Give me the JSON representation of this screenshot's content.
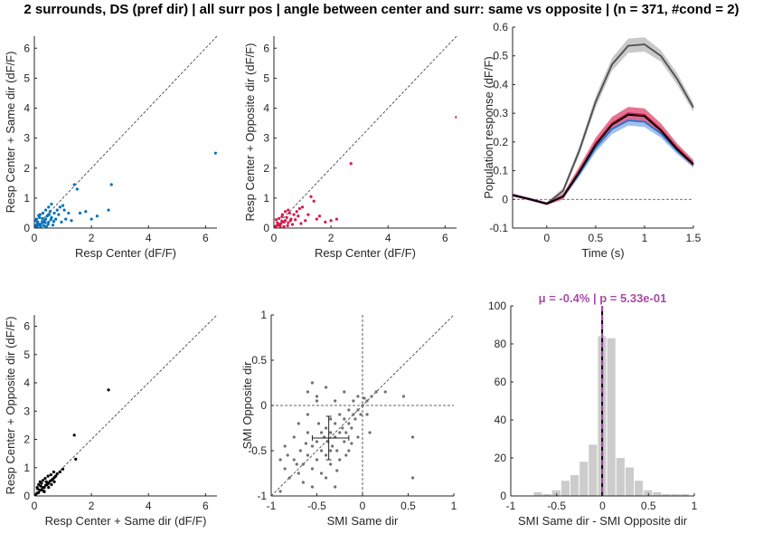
{
  "figure": {
    "suptitle": "2 surrounds, DS (pref dir) | all surr pos | angle between center and surr: same vs opposite | (n = 371, #cond = 2)"
  },
  "chart_data": [
    {
      "type": "scatter",
      "xlabel": "Resp Center (dF/F)",
      "ylabel": "Resp Center + Same dir (dF/F)",
      "xlim": [
        0,
        6.4
      ],
      "ylim": [
        0,
        6.4
      ],
      "xticks": [
        0,
        2,
        4,
        6
      ],
      "yticks": [
        0,
        1,
        2,
        3,
        4,
        5,
        6
      ],
      "unity_line": true,
      "marker_color": "#0072BD",
      "points": [
        [
          0.05,
          0.08
        ],
        [
          0.1,
          0.05
        ],
        [
          0.15,
          0.12
        ],
        [
          0.2,
          0.1
        ],
        [
          0.12,
          0.2
        ],
        [
          0.25,
          0.15
        ],
        [
          0.3,
          0.2
        ],
        [
          0.08,
          0.3
        ],
        [
          0.35,
          0.25
        ],
        [
          0.18,
          0.35
        ],
        [
          0.4,
          0.3
        ],
        [
          0.45,
          0.4
        ],
        [
          0.22,
          0.05
        ],
        [
          0.5,
          0.2
        ],
        [
          0.6,
          0.35
        ],
        [
          0.7,
          0.5
        ],
        [
          0.55,
          0.55
        ],
        [
          0.8,
          0.6
        ],
        [
          0.9,
          0.7
        ],
        [
          1.0,
          0.75
        ],
        [
          0.65,
          0.1
        ],
        [
          0.75,
          0.3
        ],
        [
          1.1,
          0.3
        ],
        [
          1.2,
          0.5
        ],
        [
          1.4,
          1.45
        ],
        [
          1.5,
          1.3
        ],
        [
          1.6,
          0.5
        ],
        [
          1.8,
          0.55
        ],
        [
          2.0,
          0.3
        ],
        [
          2.2,
          0.4
        ],
        [
          2.6,
          0.6
        ],
        [
          2.7,
          1.45
        ],
        [
          0.3,
          0.5
        ],
        [
          0.4,
          0.6
        ],
        [
          0.5,
          0.7
        ],
        [
          0.6,
          0.8
        ],
        [
          0.2,
          0.45
        ],
        [
          0.1,
          0.15
        ],
        [
          0.05,
          0.25
        ],
        [
          0.33,
          0.08
        ],
        [
          0.48,
          0.12
        ],
        [
          0.28,
          0.32
        ],
        [
          0.38,
          0.18
        ],
        [
          0.15,
          0.42
        ],
        [
          0.58,
          0.28
        ],
        [
          0.68,
          0.22
        ],
        [
          0.85,
          0.45
        ],
        [
          0.95,
          0.2
        ],
        [
          1.05,
          0.6
        ],
        [
          1.3,
          0.25
        ],
        [
          0.42,
          0.05
        ],
        [
          0.52,
          0.45
        ],
        [
          6.35,
          2.5
        ]
      ]
    },
    {
      "type": "scatter",
      "xlabel": "Resp Center (dF/F)",
      "ylabel": "Resp Center + Opposite dir (dF/F)",
      "xlim": [
        0,
        6.4
      ],
      "ylim": [
        0,
        6.4
      ],
      "xticks": [
        0,
        2,
        4,
        6
      ],
      "yticks": [
        0,
        1,
        2,
        3,
        4,
        5,
        6
      ],
      "unity_line": true,
      "marker_color": "#D9184B",
      "points": [
        [
          0.05,
          0.05
        ],
        [
          0.1,
          0.08
        ],
        [
          0.15,
          0.1
        ],
        [
          0.2,
          0.12
        ],
        [
          0.12,
          0.18
        ],
        [
          0.25,
          0.15
        ],
        [
          0.3,
          0.22
        ],
        [
          0.08,
          0.28
        ],
        [
          0.35,
          0.2
        ],
        [
          0.18,
          0.32
        ],
        [
          0.4,
          0.25
        ],
        [
          0.45,
          0.35
        ],
        [
          0.22,
          0.06
        ],
        [
          0.5,
          0.18
        ],
        [
          0.6,
          0.3
        ],
        [
          0.7,
          0.45
        ],
        [
          0.55,
          0.5
        ],
        [
          0.8,
          0.55
        ],
        [
          0.9,
          0.65
        ],
        [
          1.0,
          0.7
        ],
        [
          0.65,
          0.12
        ],
        [
          0.75,
          0.28
        ],
        [
          1.1,
          0.25
        ],
        [
          1.2,
          0.45
        ],
        [
          1.4,
          0.9
        ],
        [
          1.5,
          0.3
        ],
        [
          1.6,
          0.4
        ],
        [
          1.8,
          0.2
        ],
        [
          2.0,
          0.25
        ],
        [
          2.2,
          0.3
        ],
        [
          2.7,
          2.15
        ],
        [
          1.3,
          1.05
        ],
        [
          0.3,
          0.45
        ],
        [
          0.4,
          0.55
        ],
        [
          0.5,
          0.6
        ],
        [
          0.35,
          0.05
        ],
        [
          0.28,
          0.38
        ],
        [
          0.48,
          0.08
        ],
        [
          0.58,
          0.25
        ],
        [
          0.85,
          0.4
        ],
        [
          0.95,
          0.15
        ],
        [
          6.4,
          3.7
        ]
      ]
    },
    {
      "type": "line",
      "xlabel": "Time (s)",
      "ylabel": "Population response (dF/F)",
      "xlim": [
        -0.35,
        1.5
      ],
      "ylim": [
        -0.1,
        0.6
      ],
      "xticks": [
        -0.5,
        0,
        0.5,
        1,
        1.5
      ],
      "yticks": [
        -0.1,
        0,
        0.1,
        0.2,
        0.3,
        0.4,
        0.5,
        0.6
      ],
      "zero_line": true,
      "x": [
        -0.35,
        -0.167,
        0,
        0.167,
        0.333,
        0.5,
        0.667,
        0.833,
        1.0,
        1.167,
        1.333,
        1.5
      ],
      "series": [
        {
          "color": "#4D4D4D",
          "band_color": "#BFBFBF",
          "values": [
            0.015,
            0.0,
            -0.015,
            0.03,
            0.17,
            0.34,
            0.47,
            0.535,
            0.54,
            0.5,
            0.42,
            0.32
          ],
          "band": [
            0.005,
            0.005,
            0.005,
            0.01,
            0.015,
            0.02,
            0.022,
            0.025,
            0.025,
            0.02,
            0.02,
            0.015
          ]
        },
        {
          "color": "#2A6FCF",
          "band_color": "#8FB6E8",
          "values": [
            0.015,
            0.0,
            -0.015,
            0.01,
            0.09,
            0.18,
            0.245,
            0.275,
            0.27,
            0.23,
            0.17,
            0.12
          ],
          "band": [
            0.005,
            0.005,
            0.005,
            0.008,
            0.012,
            0.015,
            0.018,
            0.018,
            0.018,
            0.015,
            0.012,
            0.01
          ]
        },
        {
          "color": "#D9184B",
          "band_color": "#E05C80",
          "values": [
            0.015,
            0.0,
            -0.015,
            0.01,
            0.1,
            0.195,
            0.265,
            0.3,
            0.295,
            0.245,
            0.18,
            0.125
          ],
          "band": [
            0.005,
            0.005,
            0.005,
            0.01,
            0.015,
            0.02,
            0.022,
            0.022,
            0.022,
            0.02,
            0.015,
            0.012
          ]
        },
        {
          "color": "#000000",
          "band_color": "none",
          "values": [
            0.015,
            0.0,
            -0.015,
            0.01,
            0.095,
            0.19,
            0.26,
            0.295,
            0.29,
            0.24,
            0.175,
            0.122
          ],
          "band": [
            0,
            0,
            0,
            0,
            0,
            0,
            0,
            0,
            0,
            0,
            0,
            0
          ]
        }
      ]
    },
    {
      "type": "scatter",
      "xlabel": "Resp Center + Same dir (dF/F)",
      "ylabel": "Resp Center + Opposite dir (dF/F)",
      "xlim": [
        0,
        6.4
      ],
      "ylim": [
        0,
        6.4
      ],
      "xticks": [
        0,
        2,
        4,
        6
      ],
      "yticks": [
        0,
        1,
        2,
        3,
        4,
        5,
        6
      ],
      "unity_line": true,
      "marker_color": "#000000",
      "points": [
        [
          0.05,
          0.05
        ],
        [
          0.1,
          0.1
        ],
        [
          0.15,
          0.12
        ],
        [
          0.2,
          0.2
        ],
        [
          0.25,
          0.22
        ],
        [
          0.3,
          0.3
        ],
        [
          0.35,
          0.3
        ],
        [
          0.4,
          0.38
        ],
        [
          0.45,
          0.4
        ],
        [
          0.5,
          0.45
        ],
        [
          0.55,
          0.52
        ],
        [
          0.6,
          0.55
        ],
        [
          0.65,
          0.6
        ],
        [
          0.7,
          0.65
        ],
        [
          0.75,
          0.7
        ],
        [
          0.8,
          0.78
        ],
        [
          0.9,
          0.85
        ],
        [
          1.0,
          0.95
        ],
        [
          0.12,
          0.25
        ],
        [
          0.22,
          0.35
        ],
        [
          0.32,
          0.18
        ],
        [
          0.42,
          0.5
        ],
        [
          0.3,
          0.55
        ],
        [
          0.2,
          0.5
        ],
        [
          0.5,
          0.3
        ],
        [
          0.6,
          0.4
        ],
        [
          0.7,
          0.5
        ],
        [
          0.15,
          0.4
        ],
        [
          0.1,
          0.3
        ],
        [
          0.38,
          0.62
        ],
        [
          0.48,
          0.7
        ],
        [
          0.58,
          0.75
        ],
        [
          0.68,
          0.85
        ],
        [
          0.25,
          0.45
        ],
        [
          0.35,
          0.15
        ],
        [
          1.4,
          2.15
        ],
        [
          1.45,
          1.3
        ],
        [
          2.6,
          3.75
        ]
      ]
    },
    {
      "type": "scatter",
      "xlabel": "SMI Same dir",
      "ylabel": "SMI Opposite dir",
      "xlim": [
        -1,
        1
      ],
      "ylim": [
        -1,
        1
      ],
      "xticks": [
        -1,
        -0.5,
        0,
        0.5,
        1
      ],
      "yticks": [
        -1,
        -0.5,
        0,
        0.5,
        1
      ],
      "unity_line": true,
      "zero_lines": true,
      "marker_color": "#707070",
      "crosshair": {
        "x": -0.37,
        "y": -0.36,
        "x_range": [
          -0.55,
          -0.15
        ],
        "y_range": [
          -0.6,
          -0.12
        ]
      },
      "points": [
        [
          -0.9,
          -0.95
        ],
        [
          -0.85,
          -0.7
        ],
        [
          -0.8,
          -0.8
        ],
        [
          -0.75,
          -0.6
        ],
        [
          -0.7,
          -0.75
        ],
        [
          -0.68,
          -0.5
        ],
        [
          -0.65,
          -0.65
        ],
        [
          -0.6,
          -0.55
        ],
        [
          -0.6,
          -0.3
        ],
        [
          -0.55,
          -0.45
        ],
        [
          -0.55,
          -0.7
        ],
        [
          -0.5,
          -0.4
        ],
        [
          -0.5,
          -0.6
        ],
        [
          -0.48,
          -0.2
        ],
        [
          -0.45,
          -0.5
        ],
        [
          -0.42,
          -0.35
        ],
        [
          -0.4,
          -0.25
        ],
        [
          -0.4,
          -0.55
        ],
        [
          -0.38,
          -0.4
        ],
        [
          -0.35,
          -0.3
        ],
        [
          -0.35,
          -0.15
        ],
        [
          -0.33,
          -0.45
        ],
        [
          -0.3,
          -0.35
        ],
        [
          -0.3,
          -0.2
        ],
        [
          -0.28,
          -0.5
        ],
        [
          -0.25,
          -0.3
        ],
        [
          -0.25,
          -0.1
        ],
        [
          -0.22,
          -0.25
        ],
        [
          -0.2,
          -0.4
        ],
        [
          -0.2,
          -0.15
        ],
        [
          -0.18,
          -0.3
        ],
        [
          -0.15,
          -0.2
        ],
        [
          -0.15,
          -0.05
        ],
        [
          -0.12,
          -0.25
        ],
        [
          -0.1,
          -0.1
        ],
        [
          -0.1,
          0.05
        ],
        [
          -0.08,
          -0.15
        ],
        [
          -0.05,
          -0.05
        ],
        [
          -0.05,
          0.1
        ],
        [
          -0.02,
          -0.1
        ],
        [
          0.0,
          0.0
        ],
        [
          0.02,
          0.08
        ],
        [
          0.05,
          0.05
        ],
        [
          0.05,
          -0.1
        ],
        [
          0.1,
          0.1
        ],
        [
          -0.6,
          0.15
        ],
        [
          -0.5,
          0.05
        ],
        [
          -0.7,
          -0.2
        ],
        [
          -0.45,
          -0.75
        ],
        [
          -0.35,
          -0.65
        ],
        [
          -0.25,
          -0.6
        ],
        [
          -0.15,
          -0.5
        ],
        [
          -0.65,
          -0.85
        ],
        [
          -0.55,
          -0.9
        ],
        [
          -0.4,
          -0.8
        ],
        [
          -0.3,
          -0.9
        ],
        [
          -0.75,
          -0.35
        ],
        [
          -0.85,
          -0.45
        ],
        [
          -0.9,
          -0.6
        ],
        [
          -0.2,
          0.15
        ],
        [
          -0.3,
          0.05
        ],
        [
          -0.4,
          0.2
        ],
        [
          -0.5,
          0.1
        ],
        [
          0.15,
          0.15
        ],
        [
          0.25,
          0.15
        ],
        [
          0.45,
          0.1
        ],
        [
          0.55,
          -0.35
        ],
        [
          0.55,
          -0.8
        ],
        [
          -0.55,
          0.25
        ],
        [
          -0.6,
          -0.1
        ],
        [
          -0.05,
          -0.35
        ],
        [
          0.08,
          -0.3
        ],
        [
          -0.35,
          -0.5
        ],
        [
          -0.45,
          -0.3
        ],
        [
          -0.62,
          -0.42
        ],
        [
          -0.72,
          -0.65
        ],
        [
          -0.82,
          -0.55
        ],
        [
          -0.18,
          -0.55
        ],
        [
          -0.28,
          -0.72
        ],
        [
          -0.12,
          -0.42
        ]
      ]
    },
    {
      "type": "bar",
      "title": "μ = -0.4% | p = 5.33e-01",
      "xlabel": "SMI Same dir - SMI Opposite dir",
      "ylabel": "",
      "xlim": [
        -1,
        1
      ],
      "ylim": [
        0,
        100
      ],
      "xticks": [
        -1,
        -0.5,
        0,
        0.5,
        1
      ],
      "yticks": [
        0,
        20,
        40,
        60,
        80,
        100
      ],
      "bar_color": "#CCCCCC",
      "mean_line": {
        "x": -0.004,
        "colors": [
          "#000000",
          "#A64CA6"
        ]
      },
      "bin_edges": [
        -0.75,
        -0.65,
        -0.55,
        -0.45,
        -0.35,
        -0.25,
        -0.15,
        -0.05,
        0.05,
        0.15,
        0.25,
        0.35,
        0.45,
        0.55,
        0.65,
        0.75,
        0.85,
        0.95
      ],
      "values": [
        2,
        1,
        3,
        8,
        11,
        18,
        27,
        84,
        83,
        20,
        15,
        8,
        3,
        2,
        1,
        1,
        1
      ]
    }
  ]
}
